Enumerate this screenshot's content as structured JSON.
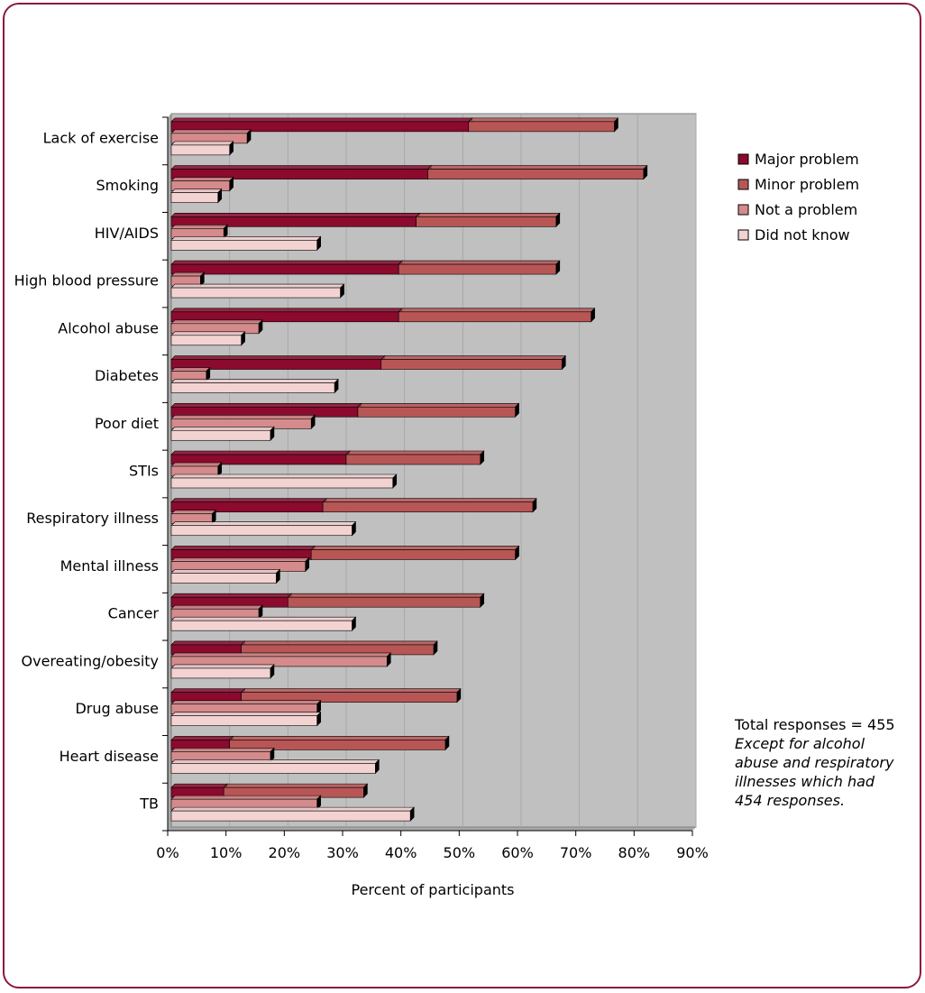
{
  "colors": {
    "frame": "#8b1a3a",
    "plot_background": "#c0c0c0",
    "grid": "#a8a8a8"
  },
  "chart_data": {
    "type": "bar",
    "orientation": "horizontal",
    "categories": [
      "Lack of exercise",
      "Smoking",
      "HIV/AIDS",
      "High blood pressure",
      "Alcohol abuse",
      "Diabetes",
      "Poor diet",
      "STIs",
      "Respiratory illness",
      "Mental illness",
      "Cancer",
      "Overeating/obesity",
      "Drug abuse",
      "Heart disease",
      "TB"
    ],
    "bar_groups": [
      {
        "stacked": true,
        "series": [
          "Major problem",
          "Minor problem"
        ]
      },
      {
        "stacked": false,
        "series": [
          "Not a problem"
        ]
      },
      {
        "stacked": false,
        "series": [
          "Did not know"
        ]
      }
    ],
    "series": [
      {
        "name": "Major problem",
        "color": "#8b0a2e",
        "values": [
          51,
          44,
          42,
          39,
          39,
          36,
          32,
          30,
          26,
          24,
          20,
          12,
          12,
          10,
          9
        ]
      },
      {
        "name": "Minor problem",
        "color": "#b85656",
        "values": [
          25,
          37,
          24,
          27,
          33,
          31,
          27,
          23,
          36,
          35,
          33,
          33,
          37,
          37,
          24
        ]
      },
      {
        "name": "Not a problem",
        "color": "#d58b8b",
        "values": [
          13,
          10,
          9,
          5,
          15,
          6,
          24,
          8,
          7,
          23,
          15,
          37,
          25,
          17,
          25
        ]
      },
      {
        "name": "Did not know",
        "color": "#f3d2d2",
        "values": [
          10,
          8,
          25,
          29,
          12,
          28,
          17,
          38,
          31,
          18,
          31,
          17,
          25,
          35,
          41
        ]
      }
    ],
    "xlabel": "Percent of participants",
    "xlim": [
      0,
      90
    ],
    "xticks": [
      "0%",
      "10%",
      "20%",
      "30%",
      "40%",
      "50%",
      "60%",
      "70%",
      "80%",
      "90%"
    ],
    "grid": true,
    "legend_position": "right",
    "annotation": {
      "line1": "Total responses = 455",
      "line2": "Except for alcohol",
      "line3": "abuse and respiratory",
      "line4": "illnesses which had",
      "line5": "454 responses."
    }
  }
}
